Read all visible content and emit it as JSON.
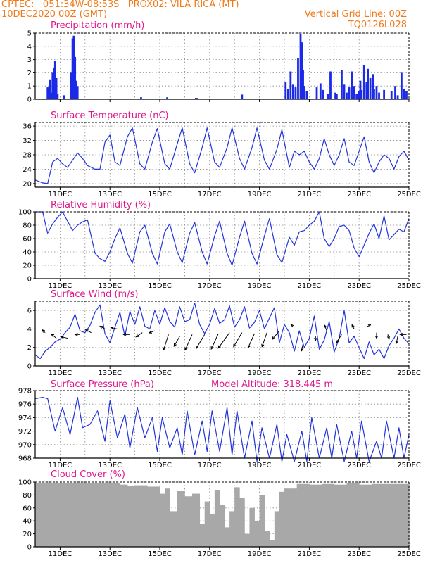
{
  "header": {
    "line1_left": "CPTEC:   051:34W-08:53S   PROX02: VILA RICA (MT)",
    "line2_left": "10DEC2020 00Z (GMT)",
    "line2_right": "Vertical Grid Line: 00Z",
    "line3_right": "TQ0126L028"
  },
  "colors": {
    "header": "#f07a1a",
    "panel_title": "#e0158c",
    "line": "#2233dd",
    "bar": "#1a2ae6",
    "cloud": "#a8a8a8",
    "wind_arrow": "#000000"
  },
  "x_axis": {
    "range_days": [
      10,
      25
    ],
    "tick_days": [
      11,
      13,
      15,
      17,
      19,
      21,
      23,
      25
    ],
    "tick_labels": [
      "11DEC",
      "13DEC",
      "15DEC",
      "17DEC",
      "19DEC",
      "21DEC",
      "23DEC",
      "25DEC"
    ]
  },
  "chart_data": [
    {
      "type": "bar",
      "title": "Precipitation (mm/h)",
      "ylim": [
        0,
        5
      ],
      "yticks": [
        0,
        1,
        2,
        3,
        4,
        5
      ],
      "x_unit": "day of December 2020",
      "x": [
        10.5,
        10.55,
        10.6,
        10.65,
        10.7,
        10.75,
        10.8,
        10.85,
        10.9,
        11.15,
        11.45,
        11.5,
        11.55,
        11.6,
        11.65,
        11.7,
        14.25,
        15.3,
        16.45,
        16.5,
        18.3,
        20.05,
        20.15,
        20.25,
        20.35,
        20.45,
        20.55,
        20.65,
        20.7,
        20.75,
        20.8,
        20.9,
        21.3,
        21.45,
        21.55,
        21.75,
        21.85,
        22.05,
        22.1,
        22.3,
        22.4,
        22.5,
        22.6,
        22.7,
        22.8,
        22.9,
        23.0,
        23.05,
        23.1,
        23.2,
        23.3,
        23.35,
        23.45,
        23.55,
        23.6,
        23.7,
        23.8,
        24.0,
        24.3,
        24.45,
        24.55,
        24.7,
        24.8,
        24.9
      ],
      "values": [
        0.9,
        0.6,
        1.5,
        0.5,
        2.0,
        2.4,
        2.9,
        1.6,
        0.4,
        0.3,
        2.0,
        4.6,
        4.8,
        3.2,
        1.4,
        1.0,
        0.15,
        0.15,
        0.1,
        0.1,
        0.35,
        1.3,
        0.8,
        2.1,
        1.1,
        0.9,
        3.1,
        4.9,
        4.3,
        2.2,
        1.0,
        0.6,
        0.9,
        1.2,
        0.7,
        0.4,
        2.1,
        0.5,
        0.4,
        2.2,
        1.1,
        0.5,
        0.9,
        2.1,
        1.0,
        0.4,
        0.6,
        1.4,
        0.7,
        2.6,
        1.3,
        2.3,
        1.6,
        1.9,
        0.8,
        1.0,
        0.5,
        0.7,
        0.6,
        1.0,
        0.3,
        2.0,
        0.8,
        0.6
      ]
    },
    {
      "type": "line",
      "title": "Surface Temperature (nC)",
      "ylim": [
        19,
        37
      ],
      "yticks": [
        20,
        24,
        28,
        32,
        36
      ],
      "x_unit": "day of December 2020",
      "x": [
        10.0,
        10.3,
        10.5,
        10.7,
        10.9,
        11.1,
        11.3,
        11.5,
        11.7,
        11.9,
        12.1,
        12.4,
        12.6,
        12.8,
        13.0,
        13.2,
        13.4,
        13.7,
        13.9,
        14.2,
        14.4,
        14.7,
        14.9,
        15.2,
        15.4,
        15.7,
        15.9,
        16.2,
        16.4,
        16.7,
        16.9,
        17.2,
        17.4,
        17.7,
        17.9,
        18.2,
        18.4,
        18.7,
        18.9,
        19.2,
        19.4,
        19.7,
        19.9,
        20.2,
        20.4,
        20.6,
        20.8,
        21.0,
        21.2,
        21.4,
        21.6,
        21.8,
        22.0,
        22.2,
        22.4,
        22.6,
        22.8,
        23.0,
        23.2,
        23.4,
        23.6,
        23.8,
        24.0,
        24.2,
        24.4,
        24.6,
        24.8,
        25.0
      ],
      "values": [
        21,
        20.2,
        20,
        26,
        27,
        25.5,
        24.5,
        26.5,
        28.5,
        27,
        25,
        24,
        24,
        31.5,
        33.5,
        26,
        25,
        33,
        35.5,
        25.5,
        24,
        31.5,
        35.3,
        25.5,
        24,
        31,
        35.5,
        25.5,
        23,
        30,
        35.5,
        26,
        24.5,
        30,
        35.5,
        27,
        24,
        30,
        35.5,
        26.5,
        24,
        29.5,
        35,
        24.5,
        29,
        28,
        29,
        26,
        24,
        27,
        32.5,
        28,
        25,
        28,
        32.5,
        26,
        25,
        29,
        33,
        26,
        23,
        26,
        28,
        27,
        24,
        27.5,
        29,
        26.5
      ]
    },
    {
      "type": "line",
      "title": "Relative Humidity (%)",
      "ylim": [
        0,
        100
      ],
      "yticks": [
        0,
        20,
        40,
        60,
        80,
        100
      ],
      "x_unit": "day of December 2020",
      "x": [
        10.0,
        10.3,
        10.5,
        10.7,
        10.9,
        11.1,
        11.3,
        11.5,
        11.7,
        11.9,
        12.1,
        12.4,
        12.6,
        12.8,
        13.0,
        13.2,
        13.4,
        13.7,
        13.9,
        14.2,
        14.4,
        14.7,
        14.9,
        15.2,
        15.4,
        15.7,
        15.9,
        16.2,
        16.4,
        16.7,
        16.9,
        17.2,
        17.4,
        17.7,
        17.9,
        18.2,
        18.4,
        18.7,
        18.9,
        19.2,
        19.4,
        19.7,
        19.9,
        20.2,
        20.4,
        20.6,
        20.8,
        21.0,
        21.2,
        21.4,
        21.6,
        21.8,
        22.0,
        22.2,
        22.4,
        22.6,
        22.8,
        23.0,
        23.2,
        23.4,
        23.6,
        23.8,
        24.0,
        24.2,
        24.4,
        24.6,
        24.8,
        25.0
      ],
      "values": [
        100,
        100,
        68,
        82,
        92,
        100,
        86,
        72,
        80,
        85,
        88,
        38,
        30,
        26,
        40,
        60,
        76,
        38,
        23,
        70,
        80,
        38,
        22,
        70,
        82,
        40,
        24,
        68,
        84,
        40,
        22,
        64,
        86,
        38,
        20,
        62,
        86,
        38,
        22,
        64,
        90,
        36,
        24,
        62,
        50,
        70,
        72,
        80,
        86,
        100,
        60,
        48,
        60,
        78,
        80,
        72,
        46,
        33,
        50,
        68,
        82,
        60,
        94,
        58,
        66,
        74,
        70,
        90
      ]
    },
    {
      "type": "line",
      "title": "Surface Wind (m/s)",
      "ylim": [
        0,
        7
      ],
      "yticks": [
        0,
        2,
        4,
        6
      ],
      "x_unit": "day of December 2020",
      "x": [
        10.0,
        10.2,
        10.4,
        10.6,
        10.8,
        11.0,
        11.2,
        11.4,
        11.6,
        11.8,
        12.0,
        12.2,
        12.4,
        12.6,
        12.8,
        13.0,
        13.2,
        13.4,
        13.6,
        13.8,
        14.0,
        14.2,
        14.4,
        14.6,
        14.8,
        15.0,
        15.2,
        15.4,
        15.6,
        15.8,
        16.0,
        16.2,
        16.4,
        16.6,
        16.8,
        17.0,
        17.2,
        17.4,
        17.6,
        17.8,
        18.0,
        18.2,
        18.4,
        18.6,
        18.8,
        19.0,
        19.2,
        19.4,
        19.6,
        19.8,
        20.0,
        20.2,
        20.4,
        20.6,
        20.8,
        21.0,
        21.2,
        21.4,
        21.6,
        21.8,
        22.0,
        22.2,
        22.4,
        22.6,
        22.8,
        23.0,
        23.2,
        23.4,
        23.6,
        23.8,
        24.0,
        24.2,
        24.4,
        24.6,
        24.8,
        25.0
      ],
      "values": [
        1.2,
        0.8,
        1.6,
        2.0,
        2.6,
        2.9,
        3.6,
        4.2,
        5.6,
        3.8,
        3.6,
        4.4,
        5.8,
        6.6,
        3.5,
        2.5,
        4.2,
        5.8,
        3.2,
        5.9,
        4.5,
        6.4,
        4.3,
        4.0,
        6.0,
        4.5,
        6.3,
        4.8,
        4.2,
        6.4,
        4.8,
        5.0,
        6.8,
        4.5,
        3.5,
        4.5,
        6.2,
        4.6,
        5.0,
        6.5,
        4.2,
        5.0,
        6.4,
        4.1,
        4.7,
        6.0,
        4.0,
        5.2,
        6.3,
        2.5,
        4.5,
        3.6,
        1.6,
        3.8,
        2.0,
        3.0,
        5.4,
        1.8,
        2.8,
        4.8,
        1.5,
        3.0,
        6.0,
        2.5,
        3.2,
        2.0,
        0.8,
        2.6,
        1.2,
        1.8,
        0.8,
        2.2,
        3.0,
        4.0,
        3.0,
        2.4
      ],
      "arrows": [
        {
          "x": 10.4,
          "y": 3.6,
          "dx": -4,
          "dy": -4
        },
        {
          "x": 10.85,
          "y": 3.0,
          "dx": -7,
          "dy": -6
        },
        {
          "x": 11.3,
          "y": 3.0,
          "dx": -9,
          "dy": -2
        },
        {
          "x": 11.8,
          "y": 3.4,
          "dx": -7,
          "dy": 0
        },
        {
          "x": 12.25,
          "y": 3.6,
          "dx": -8,
          "dy": -4
        },
        {
          "x": 12.8,
          "y": 4.0,
          "dx": -7,
          "dy": -4
        },
        {
          "x": 13.3,
          "y": 4.0,
          "dx": -9,
          "dy": -2
        },
        {
          "x": 13.8,
          "y": 3.4,
          "dx": -9,
          "dy": 0
        },
        {
          "x": 14.3,
          "y": 3.6,
          "dx": -9,
          "dy": 6
        },
        {
          "x": 14.8,
          "y": 3.8,
          "dx": -8,
          "dy": 3
        },
        {
          "x": 15.35,
          "y": 3.4,
          "dx": -7,
          "dy": 22
        },
        {
          "x": 15.8,
          "y": 3.2,
          "dx": -8,
          "dy": 14
        },
        {
          "x": 16.3,
          "y": 3.4,
          "dx": -10,
          "dy": 22
        },
        {
          "x": 16.8,
          "y": 3.4,
          "dx": -12,
          "dy": 20
        },
        {
          "x": 17.35,
          "y": 3.5,
          "dx": -10,
          "dy": 22
        },
        {
          "x": 17.8,
          "y": 3.6,
          "dx": -16,
          "dy": 22
        },
        {
          "x": 18.3,
          "y": 3.6,
          "dx": -12,
          "dy": 20
        },
        {
          "x": 18.8,
          "y": 3.5,
          "dx": -9,
          "dy": 20
        },
        {
          "x": 19.3,
          "y": 3.6,
          "dx": -7,
          "dy": 20
        },
        {
          "x": 19.8,
          "y": 3.8,
          "dx": -10,
          "dy": 12
        },
        {
          "x": 20.35,
          "y": 4.2,
          "dx": -3,
          "dy": -4
        },
        {
          "x": 20.75,
          "y": 2.4,
          "dx": -2,
          "dy": 10
        },
        {
          "x": 21.25,
          "y": 3.2,
          "dx": 0,
          "dy": 6
        },
        {
          "x": 21.7,
          "y": 3.8,
          "dx": -3,
          "dy": -8
        },
        {
          "x": 22.3,
          "y": 3.4,
          "dx": -8,
          "dy": 12
        },
        {
          "x": 22.8,
          "y": 4.0,
          "dx": -3,
          "dy": -6
        },
        {
          "x": 23.3,
          "y": 4.2,
          "dx": 6,
          "dy": -4
        },
        {
          "x": 23.7,
          "y": 3.6,
          "dx": 0,
          "dy": 8
        },
        {
          "x": 24.15,
          "y": 3.4,
          "dx": 2,
          "dy": 6
        },
        {
          "x": 24.55,
          "y": 3.2,
          "dx": -2,
          "dy": 10
        },
        {
          "x": 24.9,
          "y": 3.4,
          "dx": -9,
          "dy": 0
        }
      ]
    },
    {
      "type": "line",
      "title": "Surface Pressure (hPa)",
      "annotation": "Model Altitude: 318.445 m",
      "ylim": [
        968,
        978
      ],
      "yticks": [
        968,
        970,
        972,
        974,
        976,
        978
      ],
      "x_unit": "day of December 2020",
      "x": [
        10.0,
        10.3,
        10.5,
        10.8,
        11.1,
        11.4,
        11.7,
        11.9,
        12.2,
        12.5,
        12.8,
        13.0,
        13.3,
        13.6,
        13.8,
        14.1,
        14.4,
        14.7,
        14.9,
        15.1,
        15.4,
        15.7,
        15.9,
        16.1,
        16.4,
        16.7,
        16.9,
        17.1,
        17.4,
        17.7,
        17.9,
        18.1,
        18.4,
        18.7,
        18.9,
        19.1,
        19.4,
        19.7,
        19.9,
        20.1,
        20.4,
        20.7,
        20.9,
        21.1,
        21.4,
        21.7,
        21.9,
        22.1,
        22.4,
        22.7,
        22.9,
        23.1,
        23.4,
        23.7,
        23.9,
        24.1,
        24.4,
        24.6,
        24.8,
        25.0
      ],
      "values": [
        976.8,
        977,
        976.8,
        972,
        975.5,
        971.5,
        977,
        972.5,
        973,
        975,
        970.5,
        976.5,
        971,
        974.5,
        969.5,
        975.5,
        971,
        974,
        969,
        974,
        969.5,
        972.5,
        968.5,
        975,
        968.5,
        973.5,
        969,
        975,
        969,
        975.5,
        968.5,
        975,
        968,
        973.5,
        967.5,
        972.5,
        968,
        973,
        967.5,
        971.5,
        967.5,
        972,
        967.5,
        974,
        968,
        972.5,
        968,
        973,
        967.5,
        972,
        968,
        973.5,
        967.5,
        970.5,
        968,
        973.5,
        968,
        972.5,
        968,
        971.5
      ]
    },
    {
      "type": "bar",
      "title": "Cloud Cover (%)",
      "ylim": [
        0,
        100
      ],
      "yticks": [
        0,
        20,
        40,
        60,
        80,
        100
      ],
      "x_unit": "day of December 2020",
      "x": [
        10.0,
        10.5,
        11.0,
        11.5,
        12.0,
        12.5,
        13.0,
        13.4,
        13.7,
        14.0,
        14.5,
        15.0,
        15.2,
        15.4,
        15.7,
        16.0,
        16.3,
        16.6,
        16.8,
        17.0,
        17.2,
        17.4,
        17.6,
        17.8,
        18.0,
        18.2,
        18.4,
        18.6,
        18.8,
        19.0,
        19.2,
        19.4,
        19.6,
        19.8,
        20.0,
        20.5,
        21.0,
        21.5,
        22.0,
        22.5,
        23.0,
        23.5,
        24.0,
        24.5,
        25.0
      ],
      "values": [
        98,
        99,
        98,
        99,
        98,
        99,
        98,
        96,
        94,
        95,
        93,
        82,
        90,
        55,
        86,
        78,
        82,
        35,
        70,
        50,
        88,
        65,
        30,
        55,
        92,
        75,
        20,
        60,
        40,
        80,
        25,
        10,
        55,
        85,
        90,
        97,
        96,
        97,
        96,
        98,
        96,
        97,
        97,
        97,
        98
      ]
    }
  ]
}
